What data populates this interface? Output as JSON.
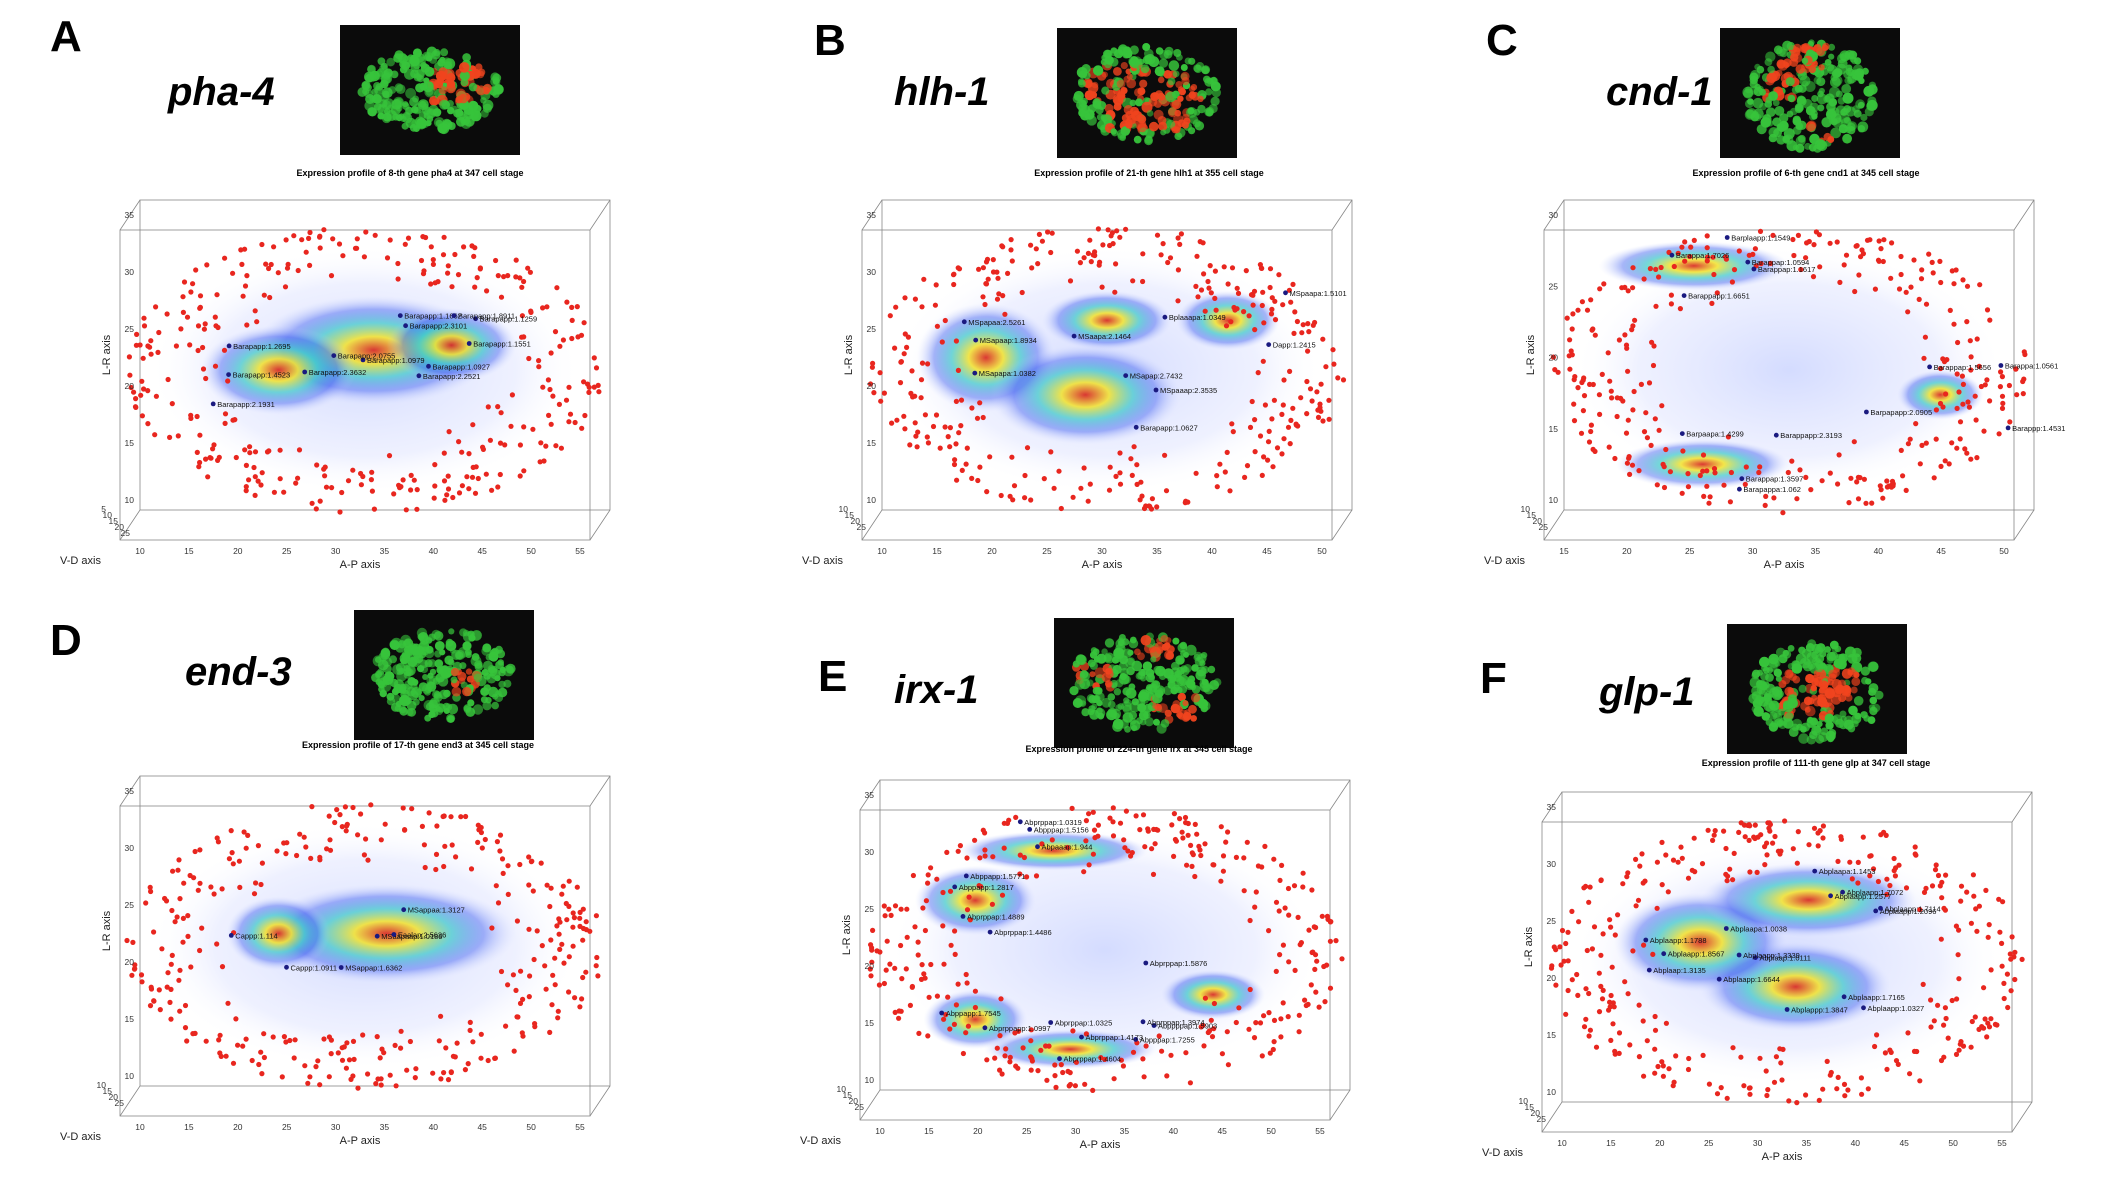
{
  "figure": {
    "axis_labels": {
      "lr": "L-R axis",
      "ap": "A-P axis",
      "vd": "V-D axis"
    },
    "colors": {
      "dot": "#e8261f",
      "microscope_green": "#37c43b",
      "microscope_red": "#f0441e"
    },
    "panels": [
      {
        "letter": "A",
        "gene": "pha-4",
        "title": "Expression profile of 8-th gene pha4 at 347 cell stage",
        "x_ticks": [
          "10",
          "15",
          "20",
          "25",
          "30",
          "35",
          "40",
          "45",
          "50",
          "55"
        ],
        "y_ticks": [
          "10",
          "15",
          "20",
          "25",
          "30",
          "35"
        ],
        "vd_ticks": [
          "5",
          "10",
          "15",
          "20",
          "25"
        ],
        "labels": [
          "Barapapp:1.0979",
          "Barapapp:1.2695",
          "Barapapp:1.1551",
          "Barapapp:1.0927",
          "Barapapp:2.0755",
          "Barapapp:1.1259",
          "Barapapp:2.3632",
          "Barapapp:1.4523",
          "Barapapp:2.2521",
          "Barapapp:1.1662",
          "Barapapp:2.1931",
          "Barapapp:1.8911",
          "Barapapp:2.3101"
        ]
      },
      {
        "letter": "B",
        "gene": "hlh-1",
        "title": "Expression profile of 21-th gene hlh1 at 355 cell stage",
        "x_ticks": [
          "10",
          "15",
          "20",
          "25",
          "30",
          "35",
          "40",
          "45",
          "50"
        ],
        "y_ticks": [
          "10",
          "15",
          "20",
          "25",
          "30",
          "35"
        ],
        "vd_ticks": [
          "10",
          "15",
          "20",
          "25"
        ],
        "labels": [
          "MSapaap:1.8934",
          "MSpaaap:2.3535",
          "MSaapa:2.1464",
          "MSpaapa:1.5101",
          "MSapapa:1.0382",
          "Barapapp:1.0627",
          "Bplaaapa:1.0349",
          "Dapp:1.2415",
          "MSpapaa:2.5261",
          "MSapap:2.7432"
        ]
      },
      {
        "letter": "C",
        "gene": "cnd-1",
        "title": "Expression profile of 6-th gene cnd1 at 345 cell stage",
        "x_ticks": [
          "15",
          "20",
          "25",
          "30",
          "35",
          "40",
          "45",
          "50"
        ],
        "y_ticks": [
          "10",
          "15",
          "20",
          "25",
          "30"
        ],
        "vd_ticks": [
          "10",
          "15",
          "20",
          "25"
        ],
        "labels": [
          "Barappapp:1.6651",
          "Barappap:1.3597",
          "Barappp:1.4531",
          "Barappap:1.1617",
          "Barappapp:2.3193",
          "Barpapapp:2.0905",
          "Barplaapp:1.1549",
          "Barpaapa:1.4299",
          "Barappap:1.5656",
          "Barappap:1.0594",
          "Barapappa:1.062",
          "Barappa:1.0561",
          "Barappa:1.7026"
        ]
      },
      {
        "letter": "D",
        "gene": "end-3",
        "title": "Expression profile of 17-th gene end3 at 345 cell stage",
        "x_ticks": [
          "10",
          "15",
          "20",
          "25",
          "30",
          "35",
          "40",
          "45",
          "50",
          "55"
        ],
        "y_ticks": [
          "10",
          "15",
          "20",
          "25",
          "30",
          "35"
        ],
        "vd_ticks": [
          "10",
          "15",
          "20",
          "25"
        ],
        "labels": [
          "MSaapaap:1.0189",
          "Cappp:1.0911",
          "MSappaa:1.3127",
          "MSappap:1.6362",
          "Eaalap:2.5626",
          "Cappp:1.114"
        ]
      },
      {
        "letter": "E",
        "gene": "irx-1",
        "title": "Expression profile of 224-th gene irx at 345 cell stage",
        "x_ticks": [
          "10",
          "15",
          "20",
          "25",
          "30",
          "35",
          "40",
          "45",
          "50",
          "55"
        ],
        "y_ticks": [
          "10",
          "15",
          "20",
          "25",
          "30",
          "35"
        ],
        "vd_ticks": [
          "10",
          "15",
          "20",
          "25"
        ],
        "labels": [
          "Abppapp:1.5771",
          "Abpppap:1.5156",
          "Abppapp:1.7545",
          "Abpppap:1.7255",
          "Abppppap:1.5903",
          "Abppapp:1.2817",
          "Abpaaap:1.944",
          "Abprppapp:1.0997",
          "Abprppap:1.4173",
          "Abprppap:1.3974",
          "Abprppap:1.4889",
          "Abprppap:1.0319",
          "Abprppap:1.0325",
          "Abprppap:1.4604",
          "Abprppap:1.5876",
          "Abprppap:1.4486"
        ]
      },
      {
        "letter": "F",
        "gene": "glp-1",
        "title": "Expression profile of 111-th gene glp at 347 cell stage",
        "x_ticks": [
          "10",
          "15",
          "20",
          "25",
          "30",
          "35",
          "40",
          "45",
          "50",
          "55"
        ],
        "y_ticks": [
          "10",
          "15",
          "20",
          "25",
          "30",
          "35"
        ],
        "vd_ticks": [
          "10",
          "15",
          "20",
          "25"
        ],
        "labels": [
          "Abplappp:1.3847",
          "Abplaapp:1.1788",
          "Abplaapp:1.2096",
          "Abplaapp:1.0327",
          "Abplaapa:1.0038",
          "Abplaapa:1.1453",
          "Abplaap:1.0111",
          "Abplaap:1.3135",
          "Abplaapp:1.2577",
          "Abplaapp:1.3339",
          "Abplaapp:1.8567",
          "Abplaapp:1.7114",
          "Abplaapp:1.7165",
          "Abplaapp:1.6644",
          "Abplaapp:1.7072"
        ]
      }
    ]
  }
}
